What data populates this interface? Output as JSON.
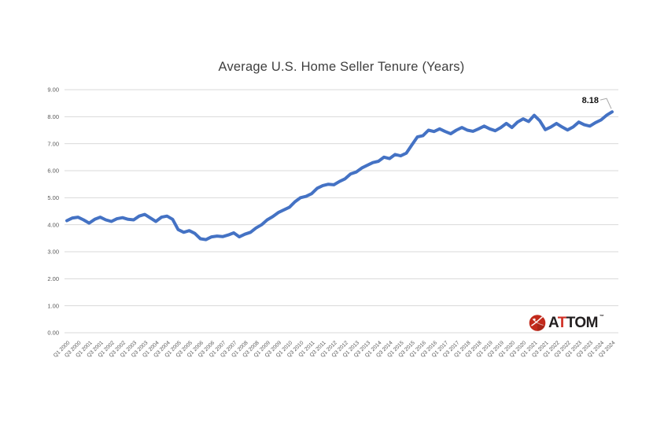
{
  "colors": {
    "background": "#ffffff",
    "gridline": "#d9d9d9",
    "line": "#4472c4",
    "title_text": "#3f3f3f",
    "tick_text": "#595959",
    "annotation_text": "#111111",
    "leader_line": "#a6a6a6",
    "logo_dark": "#231f20",
    "logo_red": "#d13127"
  },
  "logo": {
    "name": "ATTOM",
    "parts": [
      {
        "text": "A",
        "red": false
      },
      {
        "text": "T",
        "red": true
      },
      {
        "text": "TOM",
        "red": false
      }
    ],
    "trademark": "™",
    "icon": "red-globe-icon"
  },
  "chart_data": {
    "type": "line",
    "title": "Average U.S. Home Seller Tenure (Years)",
    "xlabel": "",
    "ylabel": "",
    "ylim": [
      0,
      9
    ],
    "y_tick_labels": [
      "0.00",
      "1.00",
      "2.00",
      "3.00",
      "4.00",
      "5.00",
      "6.00",
      "7.00",
      "8.00",
      "9.00"
    ],
    "grid": true,
    "legend": false,
    "line_color": "#4472c4",
    "ticks_every_n_points": 2,
    "x_tick_labels": [
      "Q1 2000",
      "Q3 2000",
      "Q1 2001",
      "Q3 2001",
      "Q1 2002",
      "Q3 2002",
      "Q1 2003",
      "Q3 2003",
      "Q1 2004",
      "Q3 2004",
      "Q1 2005",
      "Q3 2005",
      "Q1 2006",
      "Q3 2006",
      "Q1 2007",
      "Q3 2007",
      "Q1 2008",
      "Q3 2008",
      "Q1 2009",
      "Q3 2009",
      "Q1 2010",
      "Q3 2010",
      "Q1 2011",
      "Q3 2011",
      "Q1 2012",
      "Q3 2012",
      "Q1 2013",
      "Q3 2013",
      "Q1 2014",
      "Q3 2014",
      "Q1 2015",
      "Q3 2015",
      "Q1 2016",
      "Q3 2016",
      "Q1 2017",
      "Q3 2017",
      "Q1 2018",
      "Q3 2018",
      "Q1 2019",
      "Q3 2019",
      "Q1 2020",
      "Q3 2020",
      "Q1 2021",
      "Q3 2021",
      "Q1 2022",
      "Q3 2022",
      "Q1 2023",
      "Q3 2023",
      "Q1 2024",
      "Q3 2024"
    ],
    "x_range": "Q1 2000 to Q3 2024, quarterly",
    "values": [
      4.15,
      4.25,
      4.28,
      4.18,
      4.06,
      4.2,
      4.28,
      4.18,
      4.12,
      4.22,
      4.26,
      4.2,
      4.18,
      4.32,
      4.38,
      4.25,
      4.12,
      4.28,
      4.32,
      4.2,
      3.82,
      3.72,
      3.78,
      3.68,
      3.48,
      3.45,
      3.55,
      3.58,
      3.56,
      3.62,
      3.7,
      3.55,
      3.65,
      3.72,
      3.88,
      4.0,
      4.18,
      4.3,
      4.45,
      4.55,
      4.65,
      4.85,
      5.0,
      5.05,
      5.15,
      5.35,
      5.45,
      5.5,
      5.48,
      5.6,
      5.7,
      5.88,
      5.95,
      6.1,
      6.2,
      6.3,
      6.35,
      6.5,
      6.45,
      6.6,
      6.55,
      6.65,
      6.95,
      7.25,
      7.3,
      7.5,
      7.45,
      7.55,
      7.45,
      7.37,
      7.5,
      7.6,
      7.5,
      7.46,
      7.55,
      7.65,
      7.55,
      7.48,
      7.6,
      7.75,
      7.6,
      7.8,
      7.92,
      7.82,
      8.05,
      7.85,
      7.52,
      7.62,
      7.75,
      7.62,
      7.51,
      7.62,
      7.8,
      7.7,
      7.65,
      7.78,
      7.88,
      8.05,
      8.18
    ],
    "annotation": {
      "text": "8.18",
      "point_index": 98
    }
  }
}
